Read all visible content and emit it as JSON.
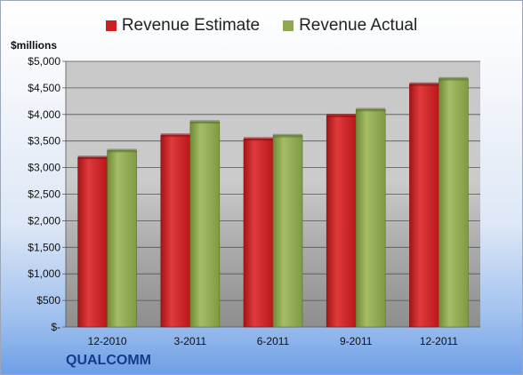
{
  "unit_label": "$millions",
  "company": "QUALCOMM",
  "colors": {
    "estimate": "#cc1f22",
    "actual": "#8fa84f",
    "plot_bg": "#c9c9c9"
  },
  "chart_data": {
    "type": "bar",
    "categories": [
      "12-2010",
      "3-2011",
      "6-2011",
      "9-2011",
      "12-2011"
    ],
    "series": [
      {
        "name": "Revenue Estimate",
        "values": [
          3190,
          3610,
          3540,
          3980,
          4570
        ]
      },
      {
        "name": "Revenue Actual",
        "values": [
          3320,
          3860,
          3600,
          4090,
          4670
        ]
      }
    ],
    "ylim": [
      0,
      5000
    ],
    "y_ticks": [
      {
        "value": 0,
        "label": "$-"
      },
      {
        "value": 500,
        "label": "$500"
      },
      {
        "value": 1000,
        "label": "$1,000"
      },
      {
        "value": 1500,
        "label": "$1,500"
      },
      {
        "value": 2000,
        "label": "$2,000"
      },
      {
        "value": 2500,
        "label": "$2,500"
      },
      {
        "value": 3000,
        "label": "$3,000"
      },
      {
        "value": 3500,
        "label": "$3,500"
      },
      {
        "value": 4000,
        "label": "$4,000"
      },
      {
        "value": 4500,
        "label": "$4,500"
      },
      {
        "value": 5000,
        "label": "$5,000"
      }
    ],
    "grid": true,
    "legend_position": "top"
  }
}
